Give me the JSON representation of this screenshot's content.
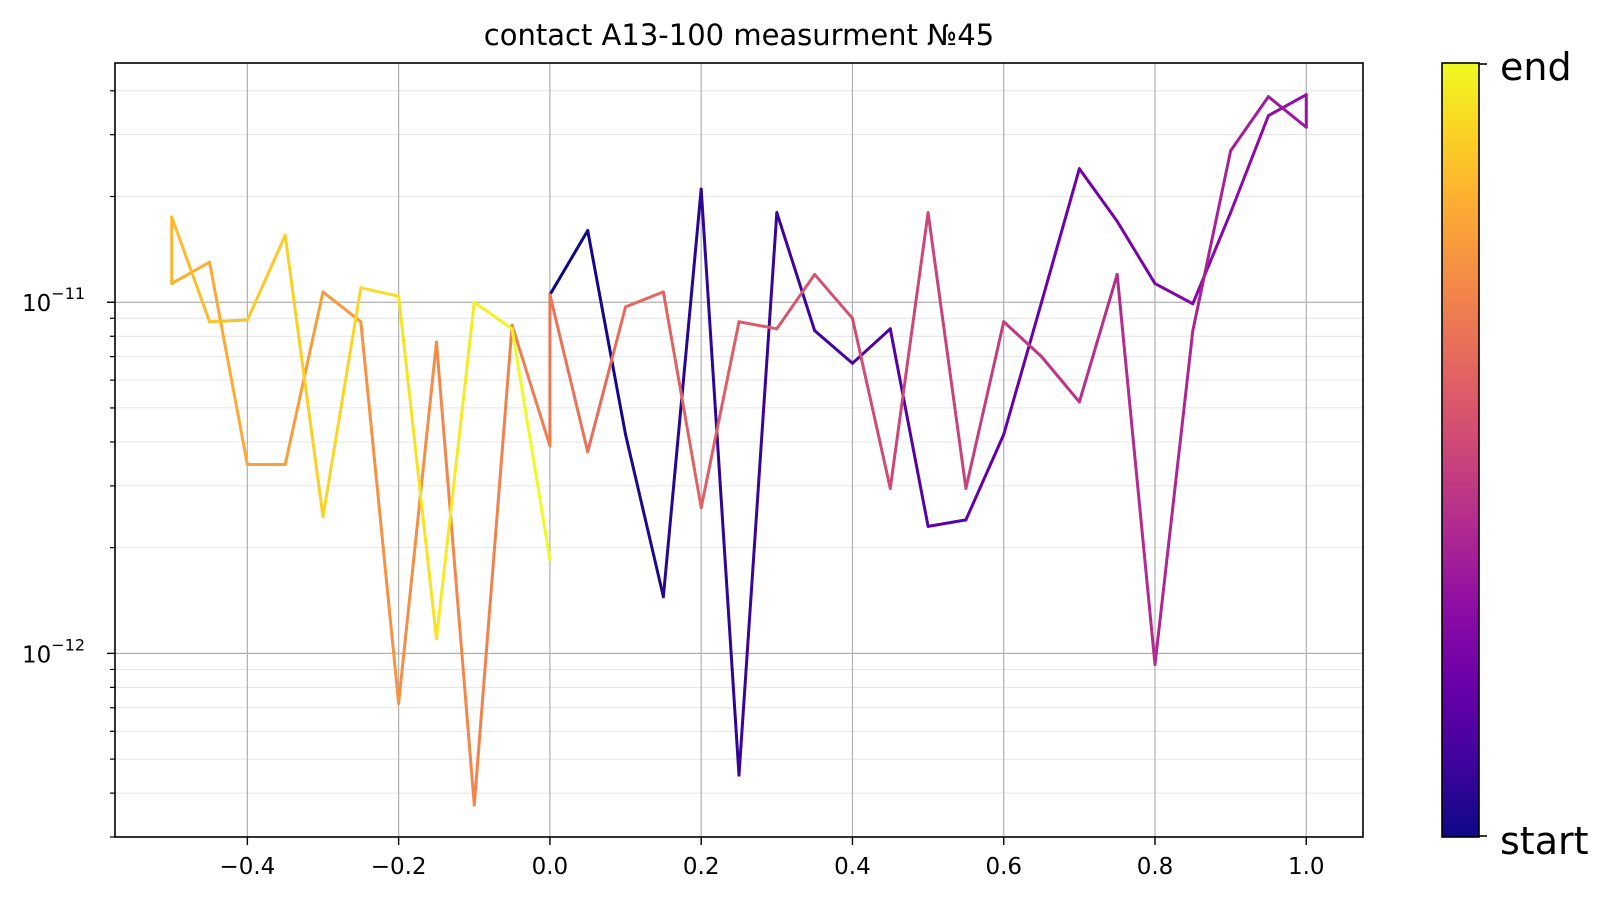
{
  "chart_data": {
    "type": "line",
    "title": "contact A13-100 measurment №45",
    "xlabel": "",
    "ylabel": "",
    "xlim": [
      -0.575,
      1.075
    ],
    "ylim": [
      3e-13,
      4.8e-11
    ],
    "yscale": "log",
    "grid": true,
    "x_ticks": [
      -0.4,
      -0.2,
      0.0,
      0.2,
      0.4,
      0.6,
      0.8,
      1.0
    ],
    "x_tick_labels": [
      "−0.4",
      "−0.2",
      "0.0",
      "0.2",
      "0.4",
      "0.6",
      "0.8",
      "1.0"
    ],
    "y_ticks": [
      {
        "value": 1e-11,
        "base": "10",
        "exp": "−11"
      },
      {
        "value": 1e-12,
        "base": "10",
        "exp": "−12"
      }
    ],
    "colormap": "plasma",
    "colorbar": {
      "top_label": "end",
      "bottom_label": "start"
    },
    "series": [
      {
        "points": [
          [
            0.0,
            1.05e-11
          ],
          [
            0.05,
            1.6e-11
          ],
          [
            0.1,
            4.2e-12
          ],
          [
            0.15,
            1.45e-12
          ],
          [
            0.2,
            2.1e-11
          ],
          [
            0.25,
            4.5e-13
          ],
          [
            0.3,
            1.8e-11
          ],
          [
            0.35,
            8.3e-12
          ],
          [
            0.4,
            6.7e-12
          ],
          [
            0.45,
            8.4e-12
          ],
          [
            0.5,
            2.3e-12
          ],
          [
            0.55,
            2.4e-12
          ],
          [
            0.6,
            4.2e-12
          ],
          [
            0.65,
            1e-11
          ],
          [
            0.7,
            2.4e-11
          ],
          [
            0.75,
            1.7e-11
          ],
          [
            0.8,
            1.13e-11
          ],
          [
            0.85,
            9.9e-12
          ],
          [
            0.9,
            1.8e-11
          ],
          [
            0.95,
            3.4e-11
          ],
          [
            1.0,
            3.9e-11
          ],
          [
            1.0,
            3.15e-11
          ],
          [
            0.95,
            3.85e-11
          ],
          [
            0.9,
            2.7e-11
          ],
          [
            0.85,
            8.3e-12
          ],
          [
            0.8,
            9.3e-13
          ],
          [
            0.75,
            1.2e-11
          ],
          [
            0.7,
            5.2e-12
          ],
          [
            0.65,
            7e-12
          ],
          [
            0.6,
            8.8e-12
          ],
          [
            0.55,
            2.95e-12
          ],
          [
            0.5,
            1.8e-11
          ],
          [
            0.45,
            2.95e-12
          ],
          [
            0.4,
            9e-12
          ],
          [
            0.35,
            1.2e-11
          ],
          [
            0.3,
            8.4e-12
          ],
          [
            0.25,
            8.8e-12
          ],
          [
            0.2,
            2.6e-12
          ],
          [
            0.15,
            1.07e-11
          ],
          [
            0.1,
            9.7e-12
          ],
          [
            0.05,
            3.75e-12
          ],
          [
            0.0,
            1.05e-11
          ],
          [
            0.0,
            3.9e-12
          ],
          [
            -0.05,
            8.6e-12
          ],
          [
            -0.1,
            3.7e-13
          ],
          [
            -0.15,
            7.7e-12
          ],
          [
            -0.2,
            7.2e-13
          ],
          [
            -0.25,
            8.8e-12
          ],
          [
            -0.3,
            1.07e-11
          ],
          [
            -0.35,
            3.45e-12
          ],
          [
            -0.4,
            3.45e-12
          ],
          [
            -0.45,
            1.3e-11
          ],
          [
            -0.5,
            1.13e-11
          ],
          [
            -0.5,
            1.75e-11
          ],
          [
            -0.45,
            8.8e-12
          ],
          [
            -0.4,
            8.9e-12
          ],
          [
            -0.35,
            1.55e-11
          ],
          [
            -0.3,
            2.45e-12
          ],
          [
            -0.25,
            1.1e-11
          ],
          [
            -0.2,
            1.04e-11
          ],
          [
            -0.15,
            1.1e-12
          ],
          [
            -0.1,
            1e-11
          ],
          [
            -0.05,
            8.4e-12
          ],
          [
            0.0,
            1.85e-12
          ]
        ]
      }
    ]
  }
}
